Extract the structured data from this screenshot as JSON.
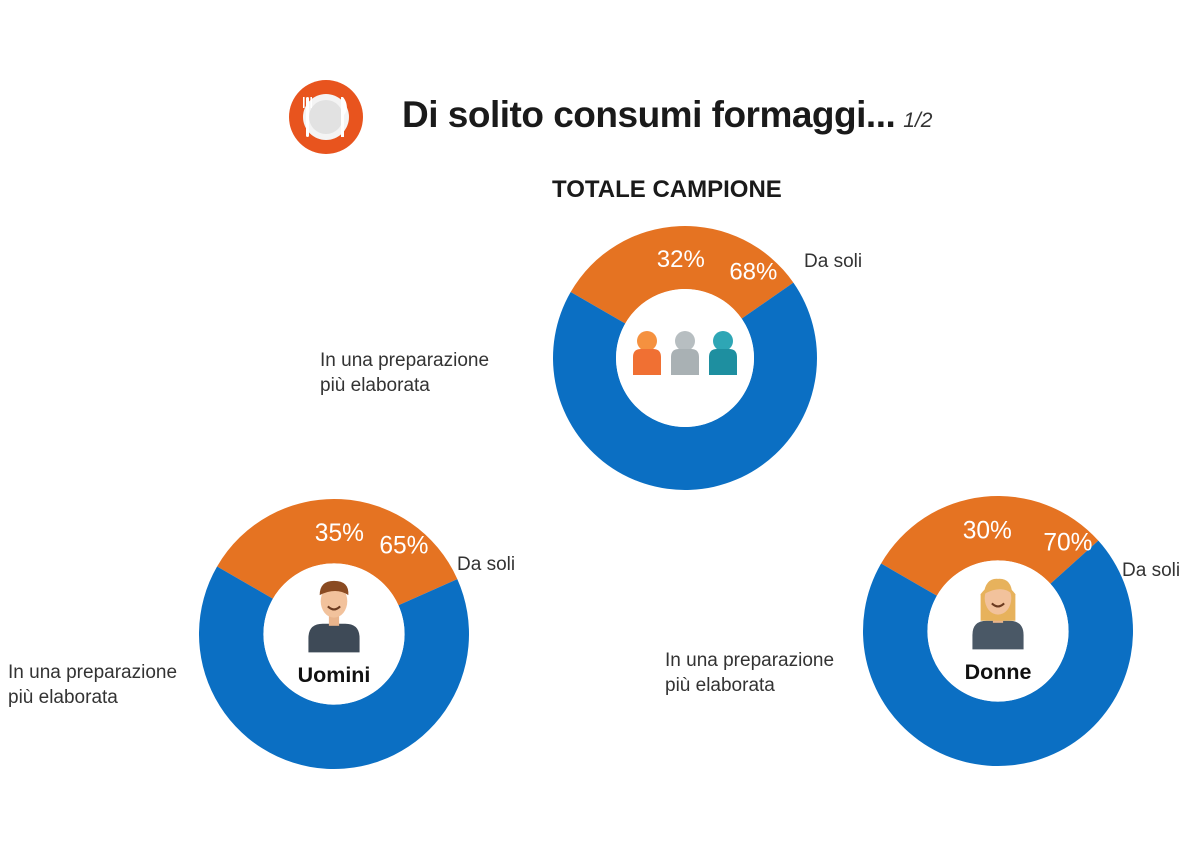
{
  "header": {
    "title": "Di solito consumi formaggi...",
    "page_indicator": "1/2",
    "icon": "plate-fork-knife-icon",
    "icon_color": "#E8541E"
  },
  "subtitle": "TOTALE CAMPIONE",
  "colors": {
    "da_soli": "#0B6FC3",
    "preparazione": "#E57322"
  },
  "chart_data": [
    {
      "type": "pie",
      "title": "TOTALE CAMPIONE",
      "center_icon": "people-group-icon",
      "series": [
        {
          "name": "Da soli",
          "value": 68,
          "label": "68%"
        },
        {
          "name": "In una preparazione più elaborata",
          "value": 32,
          "label": "32%"
        }
      ]
    },
    {
      "type": "pie",
      "title": "Uomini",
      "center_icon": "man-avatar-icon",
      "series": [
        {
          "name": "Da soli",
          "value": 65,
          "label": "65%"
        },
        {
          "name": "In una preparazione più elaborata",
          "value": 35,
          "label": "35%"
        }
      ]
    },
    {
      "type": "pie",
      "title": "Donne",
      "center_icon": "woman-avatar-icon",
      "series": [
        {
          "name": "Da soli",
          "value": 70,
          "label": "70%"
        },
        {
          "name": "In una preparazione più elaborata",
          "value": 30,
          "label": "30%"
        }
      ]
    }
  ],
  "labels": {
    "da_soli": "Da soli",
    "prep_line1": "In una preparazione",
    "prep_line2": "più elaborata"
  }
}
